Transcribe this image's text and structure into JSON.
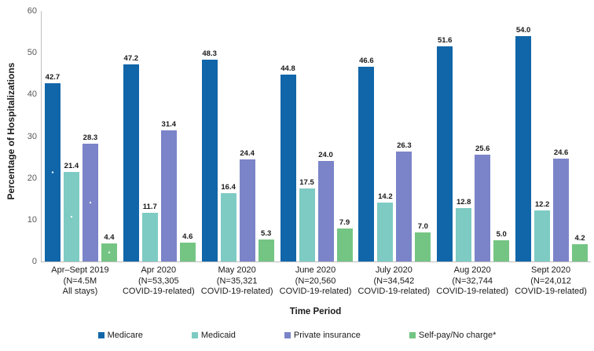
{
  "chart_data": {
    "type": "bar",
    "title": "",
    "ylabel": "Percentage of Hospitalizations",
    "xlabel": "Time Period",
    "ylim": [
      0,
      60
    ],
    "yticks": [
      0,
      10,
      20,
      30,
      40,
      50,
      60
    ],
    "grid": false,
    "legend_position": "bottom",
    "patterned_category_index": 0,
    "axis_color": "#bfbfbf",
    "categories": [
      [
        "Apr–Sept 2019",
        "(N=4.5M",
        "All stays)"
      ],
      [
        "Apr 2020",
        "(N=53,305",
        "COVID-19-related)"
      ],
      [
        "May 2020",
        "(N=35,321",
        "COVID-19-related)"
      ],
      [
        "June 2020",
        "(N=20,560",
        "COVID-19-related)"
      ],
      [
        "July 2020",
        "(N=34,542",
        "COVID-19-related)"
      ],
      [
        "Aug 2020",
        "(N=32,744",
        "COVID-19-related)"
      ],
      [
        "Sept 2020",
        "(N=24,012",
        "COVID-19-related)"
      ]
    ],
    "series": [
      {
        "name": "Medicare",
        "color": "#1166A9",
        "values": [
          42.7,
          47.2,
          48.3,
          44.8,
          46.6,
          51.6,
          54.0
        ]
      },
      {
        "name": "Medicaid",
        "color": "#7DCBC3",
        "values": [
          21.4,
          11.7,
          16.4,
          17.5,
          14.2,
          12.8,
          12.2
        ]
      },
      {
        "name": "Private insurance",
        "color": "#7B84C8",
        "values": [
          28.3,
          31.4,
          24.4,
          24.0,
          26.3,
          25.6,
          24.6
        ]
      },
      {
        "name": "Self-pay/No charge*",
        "color": "#74C583",
        "values": [
          4.4,
          4.6,
          5.3,
          7.9,
          7.0,
          5.0,
          4.2
        ]
      }
    ]
  }
}
